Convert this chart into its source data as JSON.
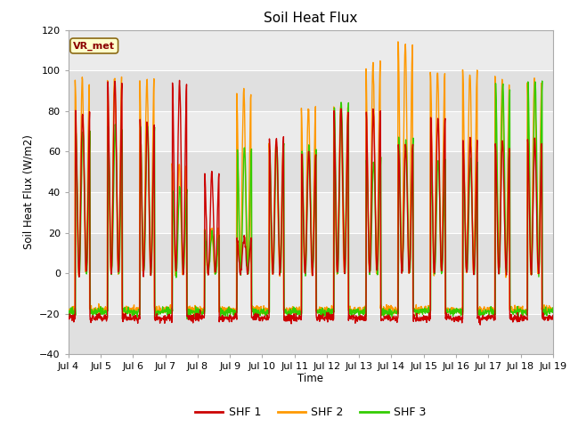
{
  "title": "Soil Heat Flux",
  "ylabel": "Soil Heat Flux (W/m2)",
  "xlabel": "Time",
  "legend_label": "VR_met",
  "series_labels": [
    "SHF 1",
    "SHF 2",
    "SHF 3"
  ],
  "series_colors": [
    "#cc0000",
    "#ff9900",
    "#33cc00"
  ],
  "ylim": [
    -40,
    120
  ],
  "axes_bg": "#ebebeb",
  "fig_bg": "#ffffff",
  "linewidth": 1.0,
  "xtick_labels": [
    "Jul 4",
    "Jul 5",
    "Jul 6",
    "Jul 7",
    "Jul 8",
    "Jul 9",
    "Jul 10",
    "Jul 11",
    "Jul 12",
    "Jul 13",
    "Jul 14",
    "Jul 15",
    "Jul 16",
    "Jul 17",
    "Jul 18",
    "Jul 19"
  ],
  "n_days": 15,
  "pts_per_day": 96,
  "day_amps_shf1": [
    80,
    95,
    75,
    95,
    49,
    18,
    67,
    60,
    81,
    80,
    63,
    77,
    66,
    64,
    65
  ],
  "day_amps_shf2": [
    95,
    97,
    95,
    54,
    22,
    90,
    65,
    82,
    82,
    103,
    113,
    100,
    99,
    95,
    95
  ],
  "day_amps_shf3": [
    70,
    72,
    72,
    42,
    20,
    62,
    63,
    62,
    84,
    55,
    66,
    55,
    55,
    93,
    95
  ]
}
